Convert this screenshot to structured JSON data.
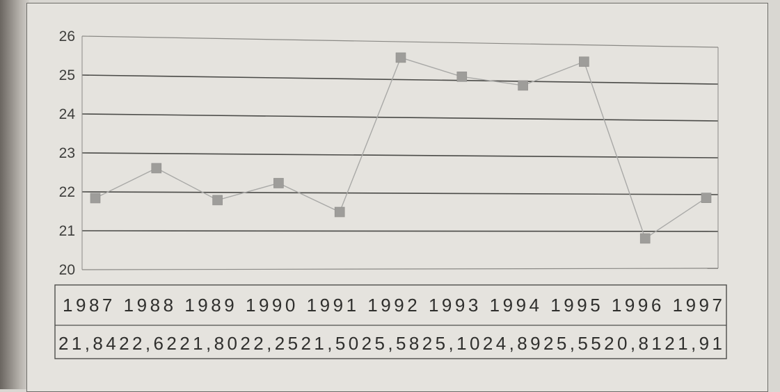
{
  "chart_data": {
    "type": "line",
    "x": [
      "1987",
      "1988",
      "1989",
      "1990",
      "1991",
      "1992",
      "1993",
      "1994",
      "1995",
      "1996",
      "1997"
    ],
    "series": [
      {
        "values": [
          21.84,
          22.62,
          21.8,
          22.25,
          21.5,
          25.58,
          25.1,
          24.89,
          25.55,
          20.81,
          21.91
        ]
      }
    ],
    "value_labels": [
      "21,84",
      "22,62",
      "21,80",
      "22,25",
      "21,50",
      "25,58",
      "25,10",
      "24,89",
      "25,55",
      "20,81",
      "21,91"
    ],
    "yticks": [
      "20",
      "21",
      "22",
      "23",
      "24",
      "25",
      "26"
    ],
    "ylim": [
      20,
      26
    ],
    "grid": true,
    "marker": "square",
    "line_color": "#a9a9a7",
    "marker_color": "#9e9d9a",
    "data_table": true
  }
}
